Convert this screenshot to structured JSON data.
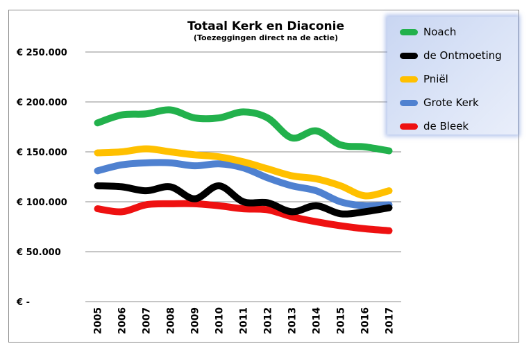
{
  "chart_data": {
    "type": "line",
    "title": "Totaal Kerk en Diaconie",
    "subtitle": "(Toezeggingen direct na de actie)",
    "x": [
      "2005",
      "2006",
      "2007",
      "2008",
      "2009",
      "2010",
      "2011",
      "2012",
      "2013",
      "2014",
      "2015",
      "2016",
      "2017"
    ],
    "ylim": [
      0,
      250000
    ],
    "yticks": [
      0,
      50000,
      100000,
      150000,
      200000,
      250000
    ],
    "ytick_labels": [
      "€ -",
      "€ 50.000",
      "€ 100.000",
      "€ 150.000",
      "€ 200.000",
      "€ 250.000"
    ],
    "grid": true,
    "legend_position": "top-right",
    "series": [
      {
        "name": "Noach",
        "color": "#22b14c",
        "values": [
          179000,
          187000,
          188000,
          192000,
          184000,
          184000,
          190000,
          184000,
          164000,
          171000,
          157000,
          155000,
          151000
        ]
      },
      {
        "name": "de Ontmoeting",
        "color": "#000000",
        "values": [
          116000,
          115000,
          111000,
          115000,
          103000,
          116000,
          100000,
          99000,
          90000,
          96000,
          88000,
          90000,
          94000
        ]
      },
      {
        "name": "Pniël",
        "color": "#ffc000",
        "values": [
          149000,
          150000,
          153000,
          150000,
          147000,
          145000,
          140000,
          133000,
          126000,
          123000,
          116000,
          106000,
          111000
        ]
      },
      {
        "name": "Grote Kerk",
        "color": "#4f81d0",
        "values": [
          131000,
          137000,
          139000,
          139000,
          136000,
          138000,
          134000,
          124000,
          116000,
          111000,
          100000,
          96000,
          97000
        ]
      },
      {
        "name": "de Bleek",
        "color": "#ee1111",
        "values": [
          93000,
          90000,
          97000,
          98000,
          98000,
          96000,
          93000,
          92000,
          85000,
          80000,
          76000,
          73000,
          71000
        ]
      }
    ]
  }
}
